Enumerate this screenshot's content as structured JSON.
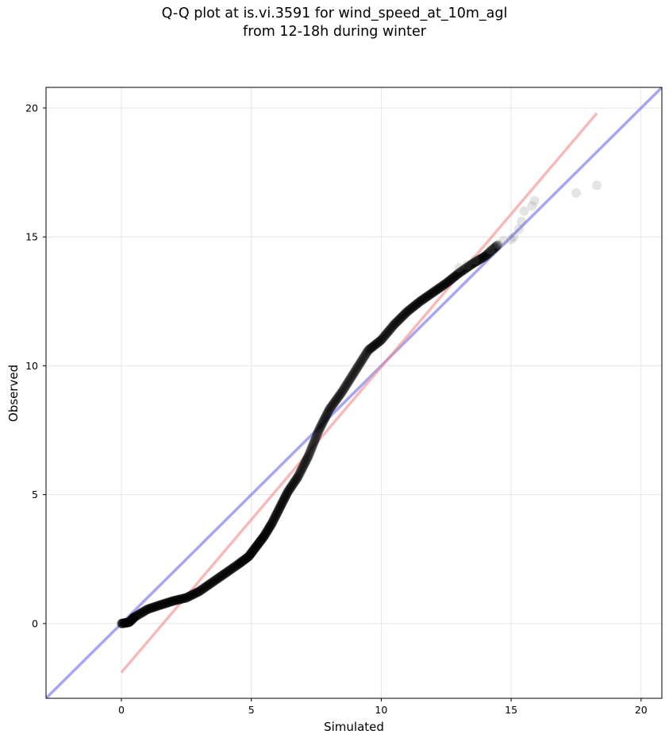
{
  "chart_data": {
    "type": "scatter",
    "title_line1": "Q-Q plot at is.vi.3591 for wind_speed_at_10m_agl",
    "title_line2": "from 12-18h during winter",
    "xlabel": "Simulated",
    "ylabel": "Observed",
    "xlim": [
      -2.9,
      20.8
    ],
    "ylim": [
      -2.9,
      20.8
    ],
    "xticks": [
      0,
      5,
      10,
      15,
      20
    ],
    "yticks": [
      0,
      5,
      10,
      15,
      20
    ],
    "grid": true,
    "quantile_curve": [
      [
        0.0,
        0.0
      ],
      [
        0.3,
        0.05
      ],
      [
        0.5,
        0.25
      ],
      [
        1.0,
        0.55
      ],
      [
        1.5,
        0.72
      ],
      [
        2.0,
        0.88
      ],
      [
        2.5,
        1.0
      ],
      [
        3.0,
        1.25
      ],
      [
        3.5,
        1.6
      ],
      [
        4.0,
        1.95
      ],
      [
        4.5,
        2.3
      ],
      [
        4.9,
        2.6
      ],
      [
        5.2,
        3.0
      ],
      [
        5.5,
        3.4
      ],
      [
        5.8,
        3.9
      ],
      [
        6.1,
        4.5
      ],
      [
        6.4,
        5.1
      ],
      [
        6.8,
        5.7
      ],
      [
        7.2,
        6.5
      ],
      [
        7.6,
        7.5
      ],
      [
        8.0,
        8.3
      ],
      [
        8.5,
        9.0
      ],
      [
        9.0,
        9.8
      ],
      [
        9.5,
        10.6
      ],
      [
        10.0,
        11.0
      ],
      [
        10.5,
        11.6
      ],
      [
        11.0,
        12.1
      ],
      [
        11.5,
        12.5
      ],
      [
        12.0,
        12.85
      ],
      [
        12.5,
        13.2
      ],
      [
        13.0,
        13.6
      ],
      [
        13.5,
        13.95
      ],
      [
        14.0,
        14.25
      ],
      [
        14.5,
        14.7
      ]
    ],
    "tail_points": [
      [
        13.0,
        13.8
      ],
      [
        13.3,
        13.9
      ],
      [
        13.6,
        14.1
      ],
      [
        14.2,
        14.5
      ],
      [
        14.5,
        14.7
      ],
      [
        14.7,
        14.85
      ],
      [
        15.0,
        14.9
      ],
      [
        15.1,
        15.0
      ],
      [
        15.3,
        15.3
      ],
      [
        15.4,
        15.6
      ],
      [
        15.5,
        16.0
      ],
      [
        15.8,
        16.2
      ],
      [
        15.9,
        16.4
      ],
      [
        17.5,
        16.7
      ],
      [
        18.3,
        17.0
      ]
    ],
    "series": [
      {
        "name": "",
        "type": "reference",
        "color": "#6b6bef",
        "points": [
          [
            -2.9,
            -2.9
          ],
          [
            20.8,
            20.8
          ]
        ]
      },
      {
        "name": "",
        "type": "fit",
        "color": "#f28a8a",
        "points": [
          [
            0.0,
            -1.9
          ],
          [
            18.3,
            19.8
          ]
        ]
      }
    ],
    "point_color": "#000000"
  }
}
